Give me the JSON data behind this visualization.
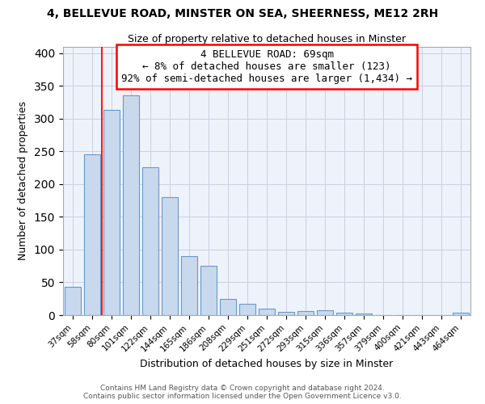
{
  "title": "4, BELLEVUE ROAD, MINSTER ON SEA, SHEERNESS, ME12 2RH",
  "subtitle": "Size of property relative to detached houses in Minster",
  "xlabel": "Distribution of detached houses by size in Minster",
  "ylabel": "Number of detached properties",
  "bar_color": "#c8d9ee",
  "bar_edge_color": "#6699cc",
  "categories": [
    "37sqm",
    "58sqm",
    "80sqm",
    "101sqm",
    "122sqm",
    "144sqm",
    "165sqm",
    "186sqm",
    "208sqm",
    "229sqm",
    "251sqm",
    "272sqm",
    "293sqm",
    "315sqm",
    "336sqm",
    "357sqm",
    "379sqm",
    "400sqm",
    "421sqm",
    "443sqm",
    "464sqm"
  ],
  "values": [
    43,
    246,
    313,
    335,
    226,
    180,
    90,
    75,
    25,
    17,
    10,
    5,
    6,
    7,
    4,
    3,
    0,
    0,
    0,
    0,
    4
  ],
  "ylim": [
    0,
    410
  ],
  "yticks": [
    0,
    50,
    100,
    150,
    200,
    250,
    300,
    350,
    400
  ],
  "annotation_title": "4 BELLEVUE ROAD: 69sqm",
  "annotation_line1": "← 8% of detached houses are smaller (123)",
  "annotation_line2": "92% of semi-detached houses are larger (1,434) →",
  "vline_x_idx": 1.5,
  "footer_line1": "Contains HM Land Registry data © Crown copyright and database right 2024.",
  "footer_line2": "Contains public sector information licensed under the Open Government Licence v3.0.",
  "background_color": "#ffffff",
  "plot_bg_color": "#eef2fa",
  "grid_color": "#c8d0e0"
}
